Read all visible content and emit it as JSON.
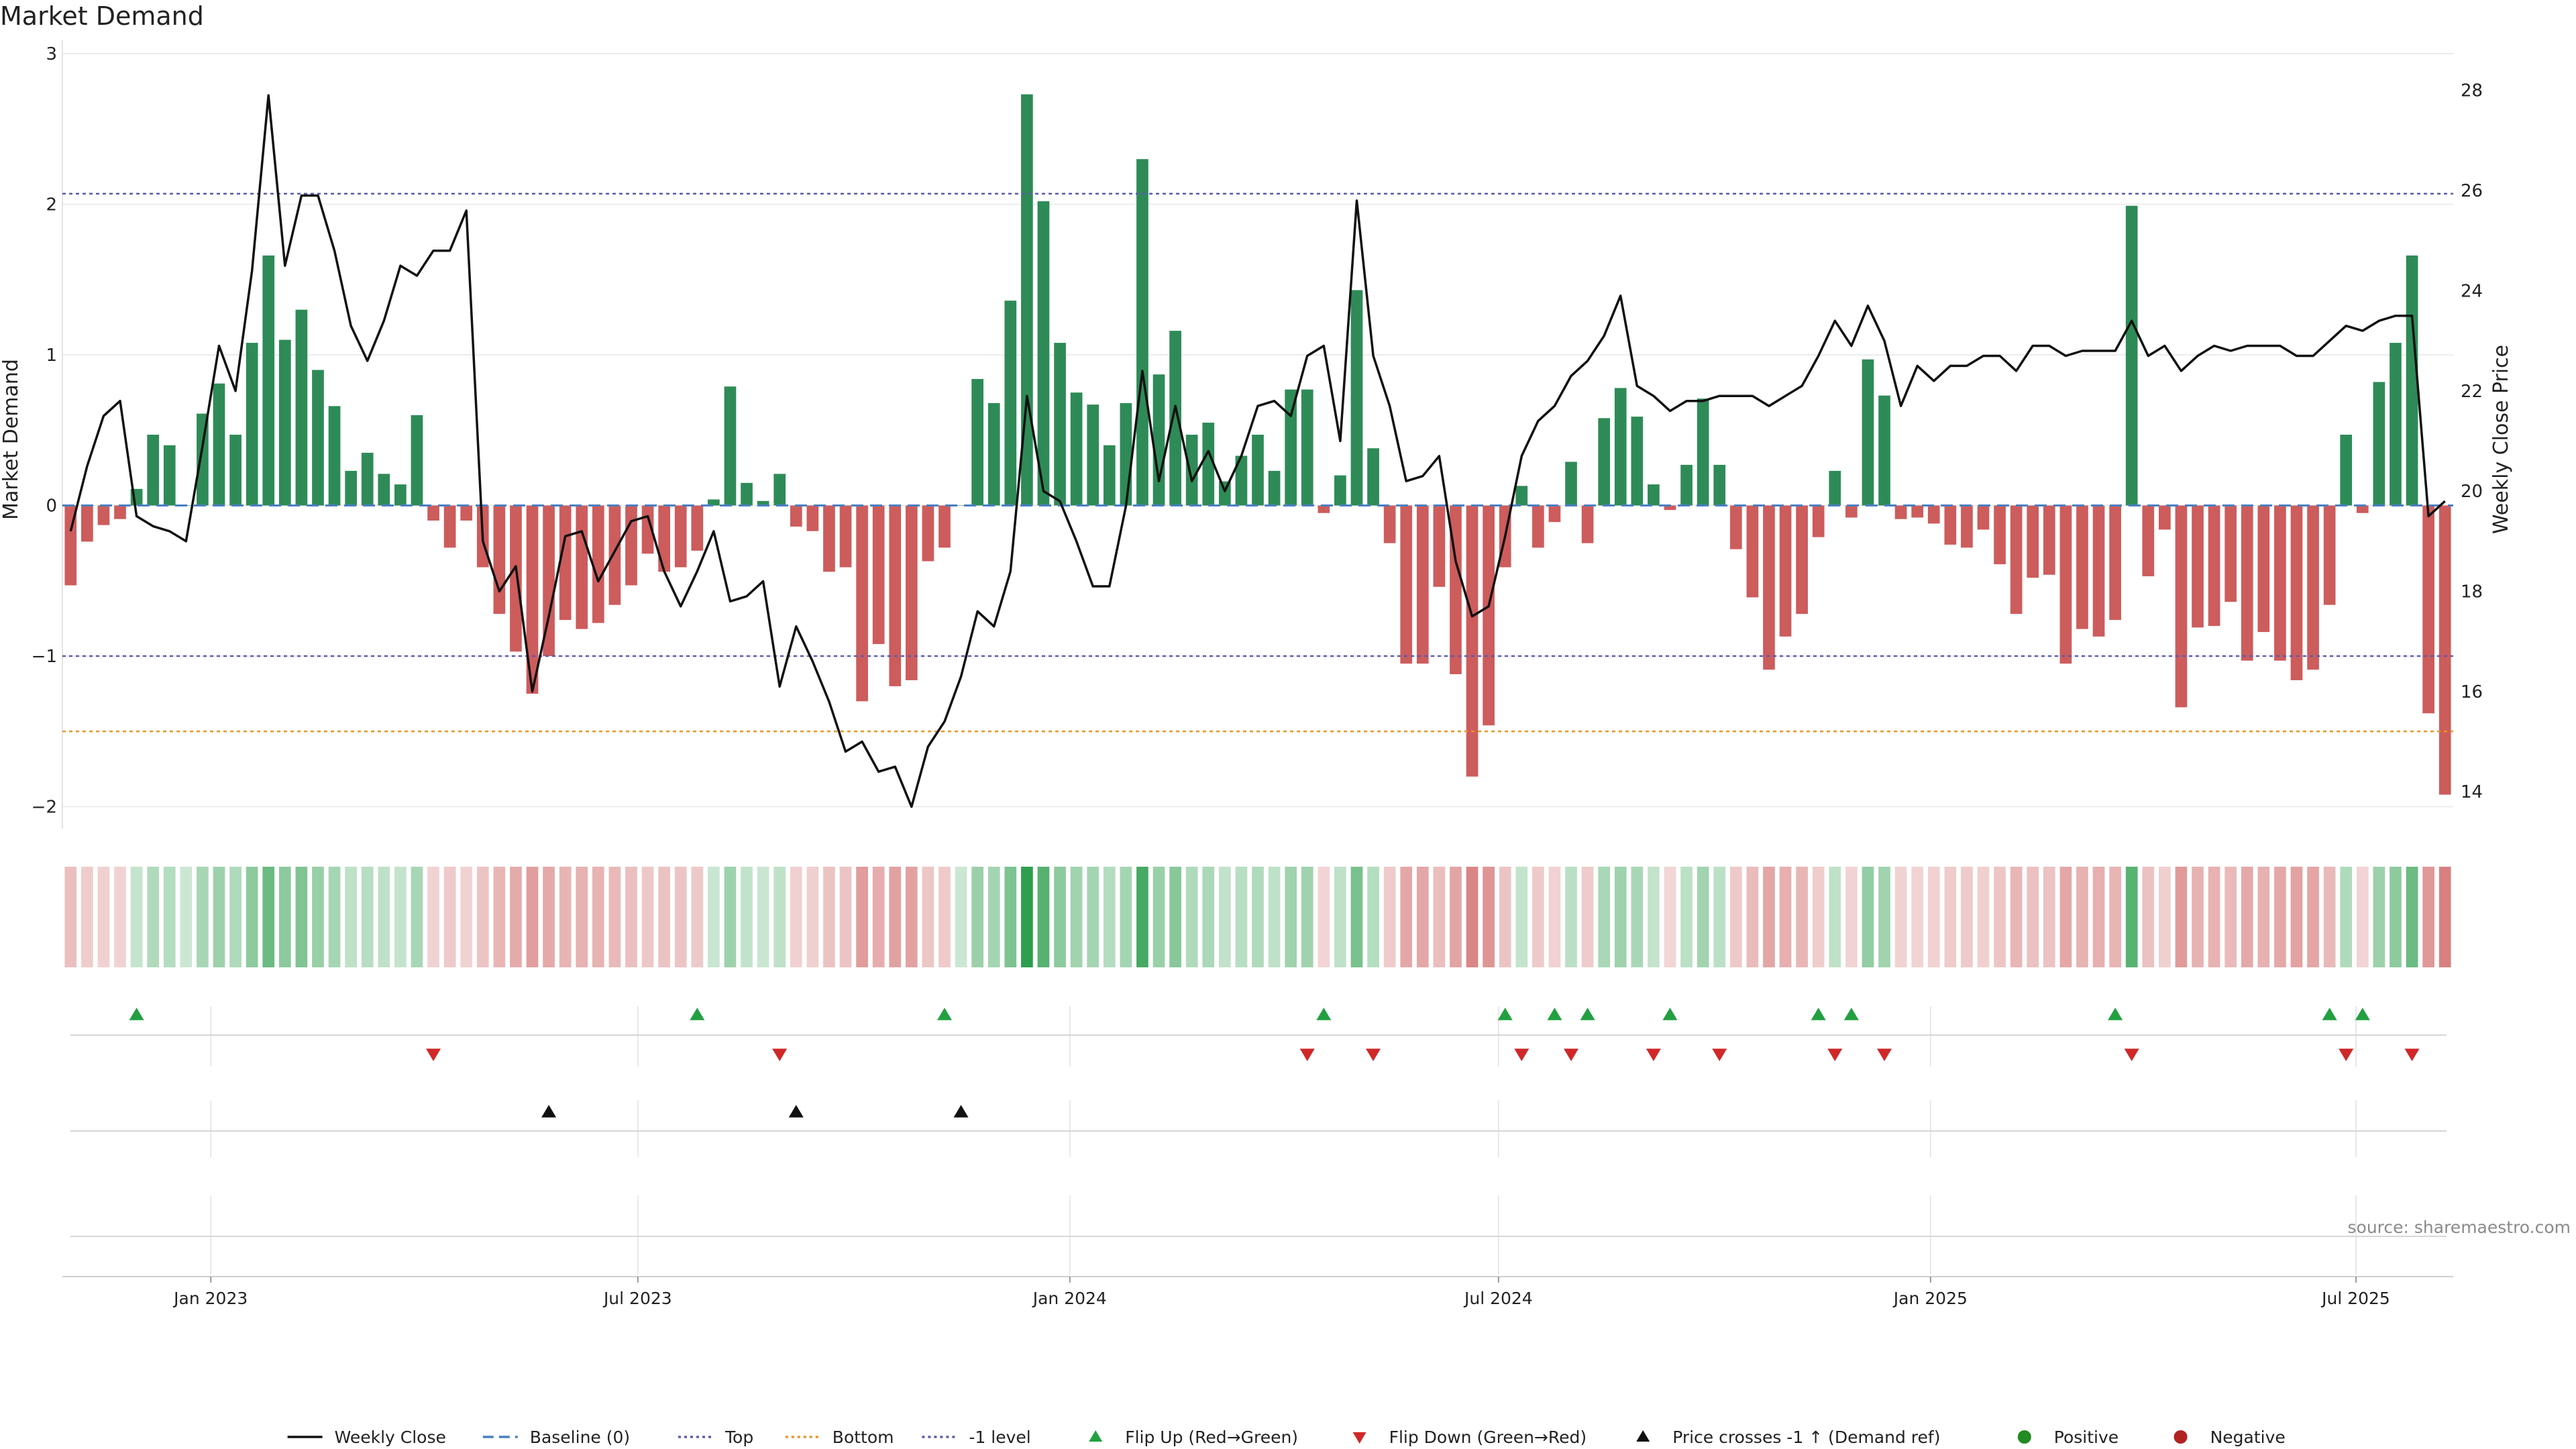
{
  "chart_data": {
    "type": "bar",
    "title": "Market Demand",
    "ylabel": "Market Demand",
    "y2label": "Weekly Close Price",
    "xlabel": "",
    "ylim": [
      -2.1,
      3.0
    ],
    "y2lim": [
      13.4,
      29.0
    ],
    "yticks": [
      3,
      2,
      1,
      0,
      -1,
      -2
    ],
    "ytick_labels": [
      "3",
      "2",
      "1",
      "0",
      "−1",
      "−2"
    ],
    "y2ticks": [
      28,
      26,
      24,
      22,
      20,
      18,
      16,
      14
    ],
    "y2tick_labels": [
      "28",
      "26",
      "24",
      "22",
      "20",
      "18",
      "16",
      "14"
    ],
    "xticks": [
      {
        "week": 8.5,
        "label": "Jan 2023"
      },
      {
        "week": 34.4,
        "label": "Jul 2023"
      },
      {
        "week": 60.6,
        "label": "Jan 2024"
      },
      {
        "week": 86.6,
        "label": "Jul 2024"
      },
      {
        "week": 112.8,
        "label": "Jan 2025"
      },
      {
        "week": 138.6,
        "label": "Jul 2025"
      }
    ],
    "reference_lines": [
      {
        "name": "Top",
        "value": 2.07,
        "color": "#5b5bb0"
      },
      {
        "name": "-1 level",
        "value": -1.0,
        "color": "#5b5bb0"
      },
      {
        "name": "Bottom",
        "value": -1.5,
        "color": "#e8952b"
      },
      {
        "name": "Baseline (0)",
        "value": 0,
        "color": "#4a7fc1"
      }
    ],
    "demand": [
      -0.53,
      -0.24,
      -0.13,
      -0.09,
      0.11,
      0.47,
      0.4,
      0.0,
      0.61,
      0.81,
      0.47,
      1.08,
      1.66,
      1.1,
      1.3,
      0.9,
      0.66,
      0.23,
      0.35,
      0.21,
      0.14,
      0.6,
      -0.1,
      -0.28,
      -0.1,
      -0.41,
      -0.72,
      -0.97,
      -1.25,
      -1.0,
      -0.76,
      -0.82,
      -0.78,
      -0.66,
      -0.53,
      -0.32,
      -0.44,
      -0.41,
      -0.3,
      0.04,
      0.79,
      0.15,
      0.03,
      0.21,
      -0.14,
      -0.17,
      -0.44,
      -0.41,
      -1.3,
      -0.92,
      -1.2,
      -1.16,
      -0.37,
      -0.28,
      0.0,
      0.84,
      0.68,
      1.36,
      2.73,
      2.02,
      1.08,
      0.75,
      0.67,
      0.4,
      0.68,
      2.3,
      0.87,
      1.16,
      0.47,
      0.55,
      0.16,
      0.33,
      0.47,
      0.23,
      0.77,
      0.77,
      -0.05,
      0.2,
      1.43,
      0.38,
      -0.25,
      -1.05,
      -1.05,
      -0.54,
      -1.12,
      -1.8,
      -1.46,
      -0.41,
      0.13,
      -0.28,
      -0.11,
      0.29,
      -0.25,
      0.58,
      0.78,
      0.59,
      0.14,
      -0.03,
      0.27,
      0.71,
      0.27,
      -0.29,
      -0.61,
      -1.09,
      -0.87,
      -0.72,
      -0.21,
      0.23,
      -0.08,
      0.97,
      0.73,
      -0.09,
      -0.08,
      -0.12,
      -0.26,
      -0.28,
      -0.16,
      -0.39,
      -0.72,
      -0.48,
      -0.46,
      -1.05,
      -0.82,
      -0.87,
      -0.76,
      1.99,
      -0.47,
      -0.16,
      -1.34,
      -0.81,
      -0.8,
      -0.64,
      -1.03,
      -0.84,
      -1.03,
      -1.16,
      -1.09,
      -0.66,
      0.47,
      -0.05,
      0.82,
      1.08,
      1.66,
      -1.38,
      -1.92
    ],
    "weekly_close": [
      19.2,
      20.5,
      21.5,
      21.8,
      19.5,
      19.3,
      19.2,
      19.0,
      20.9,
      22.9,
      22.0,
      24.4,
      27.9,
      24.5,
      25.9,
      25.9,
      24.8,
      23.3,
      22.6,
      23.4,
      24.5,
      24.3,
      24.8,
      24.8,
      25.6,
      19.0,
      18.0,
      18.5,
      16.0,
      17.5,
      19.1,
      19.2,
      18.2,
      18.8,
      19.4,
      19.5,
      18.4,
      17.7,
      18.4,
      19.2,
      17.8,
      17.9,
      18.2,
      16.1,
      17.3,
      16.6,
      15.8,
      14.8,
      15.0,
      14.4,
      14.5,
      13.7,
      14.9,
      15.4,
      16.3,
      17.6,
      17.3,
      18.4,
      21.9,
      20.0,
      19.8,
      19.0,
      18.1,
      18.1,
      19.7,
      22.4,
      20.2,
      21.7,
      20.2,
      20.8,
      20.0,
      20.7,
      21.7,
      21.8,
      21.5,
      22.7,
      22.9,
      21.0,
      25.8,
      22.7,
      21.7,
      20.2,
      20.3,
      20.7,
      18.6,
      17.5,
      17.7,
      19.1,
      20.7,
      21.4,
      21.7,
      22.3,
      22.6,
      23.1,
      23.9,
      22.1,
      21.9,
      21.6,
      21.8,
      21.8,
      21.9,
      21.9,
      21.9,
      21.7,
      21.9,
      22.1,
      22.7,
      23.4,
      22.9,
      23.7,
      23.0,
      21.7,
      22.5,
      22.2,
      22.5,
      22.5,
      22.7,
      22.7,
      22.4,
      22.9,
      22.9,
      22.7,
      22.8,
      22.8,
      22.8,
      23.4,
      22.7,
      22.9,
      22.4,
      22.7,
      22.9,
      22.8,
      22.9,
      22.9,
      22.9,
      22.7,
      22.7,
      23.0,
      23.3,
      23.2,
      23.4,
      23.5,
      23.5,
      19.5,
      19.8
    ],
    "flip_up_weeks": [
      4,
      38,
      53,
      76,
      87,
      90,
      92,
      97,
      106,
      108,
      124,
      137,
      139
    ],
    "flip_down_weeks": [
      22,
      43,
      75,
      79,
      88,
      91,
      96,
      100,
      107,
      110,
      125,
      138,
      142
    ],
    "price_cross_weeks": [
      29,
      44,
      54
    ],
    "colors": {
      "positive": "#2e8b57",
      "negative": "#cd5c5c",
      "flip_up": "#22a040",
      "flip_down": "#d02828",
      "cross": "#111111",
      "price_line": "#111111"
    },
    "legend": [
      {
        "label": "Weekly Close",
        "marker": "line",
        "color": "#111111"
      },
      {
        "label": "Baseline (0)",
        "marker": "dashed",
        "color": "#4a7fc1"
      },
      {
        "label": "Top",
        "marker": "dotted",
        "color": "#5b5bb0"
      },
      {
        "label": "Bottom",
        "marker": "dotted",
        "color": "#e8952b"
      },
      {
        "label": "-1 level",
        "marker": "dotted",
        "color": "#5b5bb0"
      },
      {
        "label": "Flip Up (Red→Green)",
        "marker": "triangle-up",
        "color": "#22a040"
      },
      {
        "label": "Flip Down (Green→Red)",
        "marker": "triangle-down",
        "color": "#d02828"
      },
      {
        "label": "Price crosses -1 ↑ (Demand ref)",
        "marker": "triangle-up",
        "color": "#111111"
      },
      {
        "label": "Positive",
        "marker": "circle",
        "color": "#228b22"
      },
      {
        "label": "Negative",
        "marker": "circle",
        "color": "#b22222"
      }
    ],
    "legend_position": "bottom-center"
  },
  "source_text": "source: sharemaestro.com"
}
